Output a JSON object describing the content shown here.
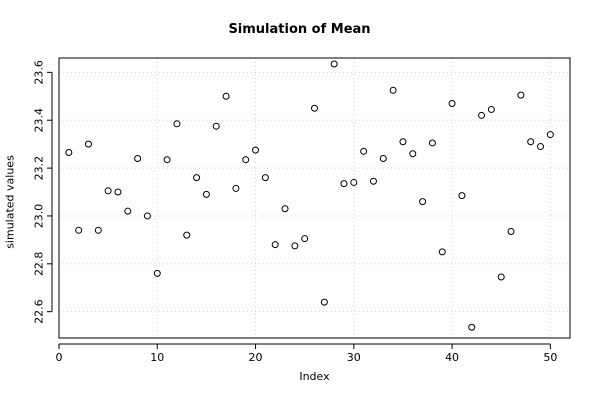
{
  "chart_data": {
    "type": "scatter",
    "title": "Simulation of Mean",
    "xlabel": "Index",
    "ylabel": "simulated values",
    "xlim": [
      0,
      52
    ],
    "ylim": [
      22.49,
      23.66
    ],
    "xticks": [
      0,
      10,
      20,
      30,
      40,
      50
    ],
    "yticks": [
      22.6,
      22.8,
      23.0,
      23.2,
      23.4,
      23.6
    ],
    "grid": true,
    "marker": "open-circle",
    "colors": {
      "points": "#000000",
      "grid": "#d3d3d3",
      "axis": "#000000"
    },
    "x": [
      1,
      2,
      3,
      4,
      5,
      6,
      7,
      8,
      9,
      10,
      11,
      12,
      13,
      14,
      15,
      16,
      17,
      18,
      19,
      20,
      21,
      22,
      23,
      24,
      25,
      26,
      27,
      28,
      29,
      30,
      31,
      32,
      33,
      34,
      35,
      36,
      37,
      38,
      39,
      40,
      41,
      42,
      43,
      44,
      45,
      46,
      47,
      48,
      49,
      50
    ],
    "y": [
      23.265,
      22.94,
      23.3,
      22.94,
      23.105,
      23.1,
      23.02,
      23.24,
      23.0,
      22.76,
      23.235,
      23.385,
      22.92,
      23.16,
      23.09,
      23.375,
      23.5,
      23.115,
      23.235,
      23.275,
      23.16,
      22.88,
      23.03,
      22.875,
      22.905,
      23.45,
      22.64,
      23.635,
      23.135,
      23.14,
      23.27,
      23.145,
      23.24,
      23.525,
      23.31,
      23.26,
      23.06,
      23.305,
      22.85,
      23.47,
      23.085,
      22.535,
      23.42,
      23.445,
      22.745,
      22.935,
      23.505,
      23.31,
      23.29,
      23.34
    ]
  }
}
